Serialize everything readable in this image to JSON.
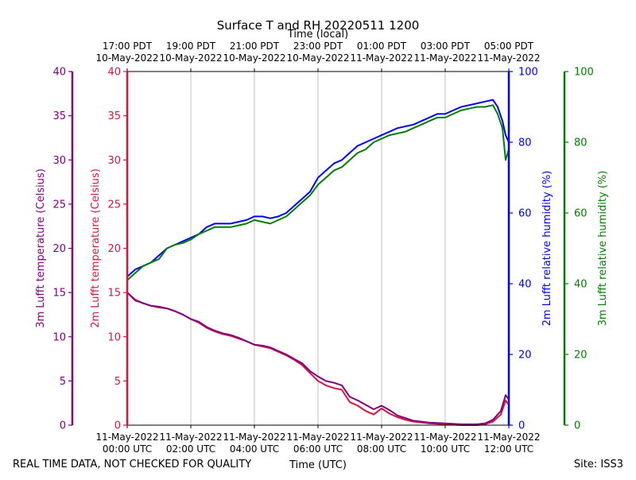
{
  "chart_data": {
    "type": "line",
    "title": "Surface T and RH 20220511 1200",
    "top_axis_label": "Time (local)",
    "xlabel": "Time (UTC)",
    "footer_left": "REAL TIME DATA, NOT CHECKED FOR QUALITY",
    "footer_right": "Site: ISS3",
    "x_range_hours": [
      0,
      12
    ],
    "x_ticks_utc": [
      {
        "hour": 0,
        "date": "11-May-2022",
        "time": "00:00 UTC"
      },
      {
        "hour": 2,
        "date": "11-May-2022",
        "time": "02:00 UTC"
      },
      {
        "hour": 4,
        "date": "11-May-2022",
        "time": "04:00 UTC"
      },
      {
        "hour": 6,
        "date": "11-May-2022",
        "time": "06:00 UTC"
      },
      {
        "hour": 8,
        "date": "11-May-2022",
        "time": "08:00 UTC"
      },
      {
        "hour": 10,
        "date": "11-May-2022",
        "time": "10:00 UTC"
      },
      {
        "hour": 12,
        "date": "11-May-2022",
        "time": "12:00 UTC"
      }
    ],
    "x_ticks_local": [
      {
        "hour": 0,
        "time": "17:00 PDT",
        "date": "10-May-2022"
      },
      {
        "hour": 2,
        "time": "19:00 PDT",
        "date": "10-May-2022"
      },
      {
        "hour": 4,
        "time": "21:00 PDT",
        "date": "10-May-2022"
      },
      {
        "hour": 6,
        "time": "23:00 PDT",
        "date": "10-May-2022"
      },
      {
        "hour": 8,
        "time": "01:00 PDT",
        "date": "11-May-2022"
      },
      {
        "hour": 10,
        "time": "03:00 PDT",
        "date": "11-May-2022"
      },
      {
        "hour": 12,
        "time": "05:00 PDT",
        "date": "11-May-2022"
      }
    ],
    "axes": [
      {
        "id": "t3m",
        "label": "3m Lufft temperature (Celsius)",
        "color": "#800080",
        "ylim": [
          0,
          40
        ],
        "ticks": [
          0,
          5,
          10,
          15,
          20,
          25,
          30,
          35,
          40
        ]
      },
      {
        "id": "t2m",
        "label": "2m Lufft temperature (Celsius)",
        "color": "#dc143c",
        "ylim": [
          0,
          40
        ],
        "ticks": [
          0,
          5,
          10,
          15,
          20,
          25,
          30,
          35,
          40
        ]
      },
      {
        "id": "rh2m",
        "label": "2m Lufft relative humidity (%)",
        "color": "#0000ff",
        "ylim": [
          0,
          100
        ],
        "ticks": [
          0,
          20,
          40,
          60,
          80,
          100
        ]
      },
      {
        "id": "rh3m",
        "label": "3m Lufft relative humidity (%)",
        "color": "#008000",
        "ylim": [
          0,
          100
        ],
        "ticks": [
          0,
          20,
          40,
          60,
          80,
          100
        ]
      }
    ],
    "series": [
      {
        "name": "2m Lufft temperature",
        "axis": "t2m",
        "color": "#dc143c",
        "x": [
          0,
          0.25,
          0.5,
          0.75,
          1,
          1.25,
          1.5,
          1.75,
          2,
          2.25,
          2.5,
          2.75,
          3,
          3.25,
          3.5,
          3.75,
          4,
          4.25,
          4.5,
          4.75,
          5,
          5.25,
          5.5,
          5.75,
          6,
          6.25,
          6.5,
          6.75,
          7,
          7.25,
          7.5,
          7.75,
          8,
          8.25,
          8.5,
          8.75,
          9,
          9.5,
          10,
          10.5,
          11,
          11.25,
          11.5,
          11.75,
          11.9,
          12
        ],
        "y": [
          15,
          14.2,
          13.8,
          13.5,
          13.3,
          13.2,
          12.9,
          12.5,
          12,
          11.6,
          11,
          10.6,
          10.3,
          10.1,
          9.8,
          9.5,
          9.1,
          8.9,
          8.7,
          8.3,
          7.9,
          7.4,
          6.8,
          5.9,
          5.0,
          4.5,
          4.2,
          4.0,
          2.6,
          2.2,
          1.6,
          1.2,
          1.9,
          1.3,
          0.9,
          0.6,
          0.4,
          0.2,
          0.1,
          0.0,
          0.0,
          0.1,
          0.4,
          1.2,
          2.8,
          2.3
        ]
      },
      {
        "name": "3m Lufft temperature",
        "axis": "t3m",
        "color": "#800080",
        "x": [
          0,
          0.25,
          0.5,
          0.75,
          1,
          1.25,
          1.5,
          1.75,
          2,
          2.25,
          2.5,
          2.75,
          3,
          3.25,
          3.5,
          3.75,
          4,
          4.25,
          4.5,
          4.75,
          5,
          5.25,
          5.5,
          5.75,
          6,
          6.25,
          6.5,
          6.75,
          7,
          7.25,
          7.5,
          7.75,
          8,
          8.25,
          8.5,
          8.75,
          9,
          9.5,
          10,
          10.5,
          11,
          11.25,
          11.5,
          11.75,
          11.9,
          12
        ],
        "y": [
          15,
          14.1,
          13.8,
          13.5,
          13.4,
          13.2,
          12.9,
          12.5,
          12,
          11.7,
          11.1,
          10.7,
          10.4,
          10.2,
          9.9,
          9.5,
          9.1,
          9.0,
          8.8,
          8.4,
          8.0,
          7.5,
          7.0,
          6.1,
          5.5,
          5.0,
          4.8,
          4.5,
          3.2,
          2.8,
          2.3,
          1.8,
          2.2,
          1.7,
          1.1,
          0.8,
          0.5,
          0.3,
          0.2,
          0.1,
          0.1,
          0.2,
          0.6,
          1.6,
          3.4,
          2.9
        ]
      },
      {
        "name": "2m Lufft relative humidity",
        "axis": "rh2m",
        "color": "#0000ff",
        "x": [
          0,
          0.25,
          0.5,
          0.75,
          1,
          1.25,
          1.5,
          1.75,
          2,
          2.25,
          2.5,
          2.75,
          3,
          3.25,
          3.5,
          3.75,
          4,
          4.25,
          4.5,
          4.75,
          5,
          5.25,
          5.5,
          5.75,
          6,
          6.25,
          6.5,
          6.75,
          7,
          7.25,
          7.5,
          7.75,
          8,
          8.25,
          8.5,
          8.75,
          9,
          9.25,
          9.5,
          9.75,
          10,
          10.25,
          10.5,
          10.75,
          11,
          11.25,
          11.5,
          11.65,
          11.8,
          11.9,
          12
        ],
        "y": [
          42,
          44,
          45,
          46,
          48,
          50,
          51,
          52,
          53,
          54,
          56,
          57,
          57,
          57,
          57.5,
          58,
          59,
          59,
          58.5,
          59,
          60,
          62,
          64,
          66,
          70,
          72,
          74,
          75,
          77,
          79,
          80,
          81,
          82,
          83,
          84,
          84.5,
          85,
          86,
          87,
          88,
          88,
          89,
          90,
          90.5,
          91,
          91.5,
          92,
          90,
          86,
          82,
          80
        ]
      },
      {
        "name": "3m Lufft relative humidity",
        "axis": "rh3m",
        "color": "#008000",
        "x": [
          0,
          0.25,
          0.5,
          0.75,
          1,
          1.25,
          1.5,
          1.75,
          2,
          2.25,
          2.5,
          2.75,
          3,
          3.25,
          3.5,
          3.75,
          4,
          4.25,
          4.5,
          4.75,
          5,
          5.25,
          5.5,
          5.75,
          6,
          6.25,
          6.5,
          6.75,
          7,
          7.25,
          7.5,
          7.75,
          8,
          8.25,
          8.5,
          8.75,
          9,
          9.25,
          9.5,
          9.75,
          10,
          10.25,
          10.5,
          10.75,
          11,
          11.25,
          11.5,
          11.65,
          11.8,
          11.9,
          12
        ],
        "y": [
          41,
          43,
          45,
          46,
          47,
          50,
          51,
          51.5,
          52.5,
          54,
          55,
          56,
          56,
          56,
          56.5,
          57,
          58,
          57.5,
          57,
          58,
          59,
          61,
          63,
          65,
          68,
          70,
          72,
          73,
          75,
          77,
          78,
          80,
          81,
          82,
          82.5,
          83,
          84,
          85,
          86,
          87,
          87,
          88,
          89,
          89.5,
          90,
          90,
          90.5,
          88,
          84,
          75,
          78
        ]
      }
    ]
  }
}
